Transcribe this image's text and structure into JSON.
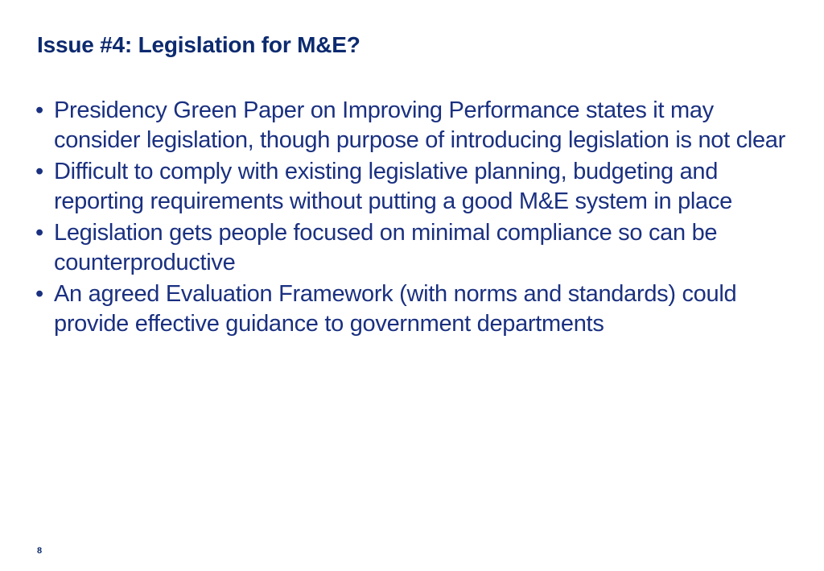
{
  "slide": {
    "title": "Issue #4: Legislation for M&E?",
    "bullet_symbol": "•",
    "bullets": [
      "Presidency Green Paper on Improving Performance states it may consider legislation, though purpose of introducing legislation is not clear",
      "Difficult to comply with existing legislative planning, budgeting and reporting requirements without putting a good M&E system in place",
      "Legislation gets people focused on minimal compliance so can be counterproductive",
      "An agreed Evaluation Framework (with norms and standards) could provide effective guidance to government departments"
    ],
    "page_number": "8"
  },
  "colors": {
    "title": "#0c2a6f",
    "body": "#1a3080",
    "background": "#ffffff"
  }
}
